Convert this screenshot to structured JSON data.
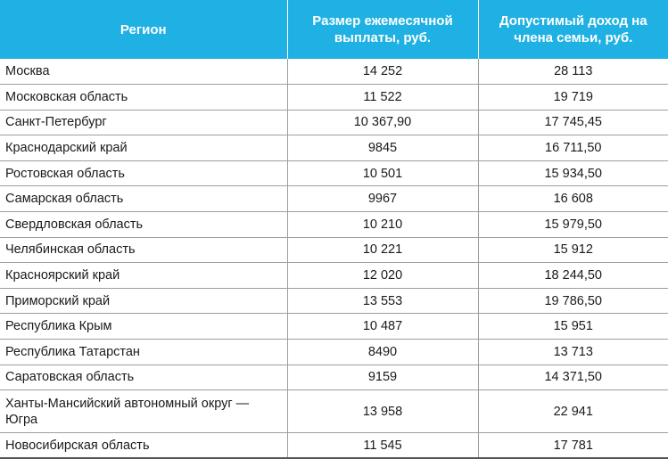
{
  "table": {
    "headers": {
      "region": "Регион",
      "payment": "Размер ежемесячной выплаты, руб.",
      "income": "Допустимый доход на члена семьи, руб."
    },
    "rows": [
      {
        "region": "Москва",
        "payment": "14 252",
        "income": "28 113"
      },
      {
        "region": "Московская область",
        "payment": "11 522",
        "income": "19 719"
      },
      {
        "region": "Санкт-Петербург",
        "payment": "10 367,90",
        "income": "17 745,45"
      },
      {
        "region": "Краснодарский край",
        "payment": "9845",
        "income": "16 711,50"
      },
      {
        "region": "Ростовская область",
        "payment": "10 501",
        "income": "15 934,50"
      },
      {
        "region": "Самарская область",
        "payment": "9967",
        "income": "16 608"
      },
      {
        "region": "Свердловская область",
        "payment": "10 210",
        "income": "15 979,50"
      },
      {
        "region": "Челябинская область",
        "payment": "10 221",
        "income": "15 912"
      },
      {
        "region": "Красноярский край",
        "payment": "12 020",
        "income": "18 244,50"
      },
      {
        "region": "Приморский край",
        "payment": "13 553",
        "income": "19 786,50"
      },
      {
        "region": "Республика Крым",
        "payment": "10 487",
        "income": "15 951"
      },
      {
        "region": "Республика Татарстан",
        "payment": "8490",
        "income": "13 713"
      },
      {
        "region": "Саратовская область",
        "payment": "9159",
        "income": "14 371,50"
      },
      {
        "region": "Ханты-Мансийский автономный округ — Югра",
        "payment": "13 958",
        "income": "22 941"
      },
      {
        "region": "Новосибирская область",
        "payment": "11 545",
        "income": "17 781"
      }
    ]
  }
}
